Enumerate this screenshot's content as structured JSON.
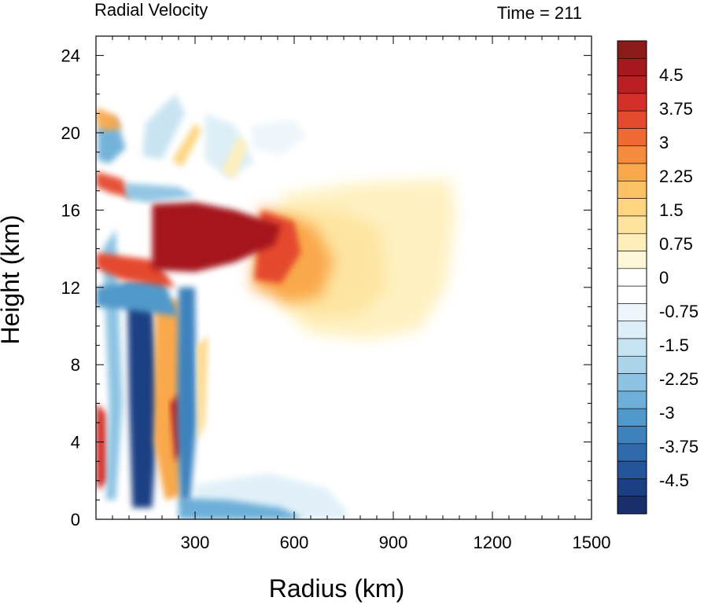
{
  "chart_data": {
    "type": "heatmap",
    "title": "Radial Velocity",
    "subtitle": "Time = 211",
    "xlabel": "Radius (km)",
    "ylabel": "Height (km)",
    "xlim": [
      0,
      1500
    ],
    "ylim": [
      0,
      25
    ],
    "x_ticks": [
      300,
      600,
      900,
      1200,
      1500
    ],
    "y_ticks": [
      0,
      4,
      8,
      12,
      16,
      20,
      24
    ],
    "x_tick_labels": [
      "300",
      "600",
      "900",
      "1200",
      "1500"
    ],
    "y_tick_labels": [
      "0",
      "4",
      "8",
      "12",
      "16",
      "20",
      "24"
    ],
    "colorbar": {
      "min": -5.25,
      "max": 5.25,
      "step": 0.25,
      "labels": [
        "4.5",
        "3.75",
        "3",
        "2.25",
        "1.5",
        "0.75",
        "0",
        "-0.75",
        "-1.5",
        "-2.25",
        "-3",
        "-3.75",
        "-4.5"
      ],
      "label_values": [
        4.5,
        3.75,
        3,
        2.25,
        1.5,
        0.75,
        0,
        -0.75,
        -1.5,
        -2.25,
        -3,
        -3.75,
        -4.5
      ],
      "colors_high_to_low": [
        "#8b1a1a",
        "#a5191e",
        "#bb1f24",
        "#d3302a",
        "#e44a2e",
        "#ef6a33",
        "#f58b3c",
        "#f9a84c",
        "#fbc165",
        "#fdd480",
        "#fde39c",
        "#feefba",
        "#fff7d8",
        "#ffffff",
        "#ffffff",
        "#eef6fb",
        "#dceef7",
        "#c6e3f1",
        "#abd4ea",
        "#8cc3e2",
        "#6dafd8",
        "#5199cb",
        "#3d82bd",
        "#2f6aab",
        "#24549a",
        "#1c3f84",
        "#182f6c"
      ]
    },
    "fields": [
      {
        "name": "outflow-core",
        "x": [
          170,
          560
        ],
        "y": [
          12.8,
          16.3
        ],
        "value": 5.0
      },
      {
        "name": "outflow-orange-tongue",
        "x": [
          540,
          720
        ],
        "y": [
          11.5,
          16
        ],
        "value": 2.6
      },
      {
        "name": "outflow-light-region",
        "x": [
          560,
          1090
        ],
        "y": [
          9.5,
          17.5
        ],
        "value": 1.2
      },
      {
        "name": "inner-inflow-column",
        "x": [
          110,
          260
        ],
        "y": [
          0.5,
          11
        ],
        "value": -4.8
      },
      {
        "name": "eye-outflow-band",
        "x": [
          170,
          300
        ],
        "y": [
          0.5,
          11
        ],
        "value": 3.0
      },
      {
        "name": "boundary-layer-inflow",
        "x": [
          250,
          620
        ],
        "y": [
          0,
          2.2
        ],
        "value": -3.0
      },
      {
        "name": "outer-inflow",
        "x": [
          580,
          1150
        ],
        "y": [
          0,
          3.2
        ],
        "value": -0.8
      },
      {
        "name": "upper-level-bands",
        "x": [
          0,
          580
        ],
        "y": [
          17,
          22
        ],
        "value": -1.5
      }
    ]
  }
}
